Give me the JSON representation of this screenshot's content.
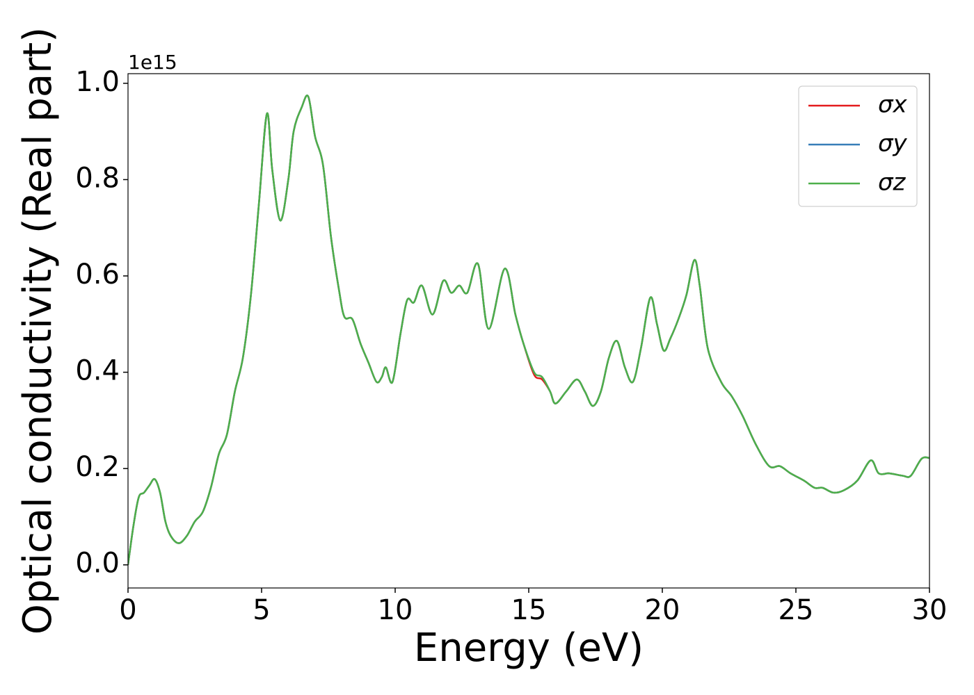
{
  "chart_data": {
    "type": "line",
    "xlabel": "Energy (eV)",
    "ylabel": "Optical conductivity (Real part)",
    "y_offset_label": "1e15",
    "xlim": [
      0,
      30
    ],
    "ylim": [
      -0.048,
      1.02
    ],
    "xticks": [
      0,
      5,
      10,
      15,
      20,
      25,
      30
    ],
    "yticks": [
      {
        "value": 0,
        "label": "0.0"
      },
      0.2,
      0.4,
      0.6,
      0.8,
      {
        "value": 1,
        "label": "1.0"
      }
    ],
    "legend": "upper right",
    "x": [
      0,
      0.2,
      0.4,
      0.6,
      0.8,
      1.0,
      1.2,
      1.4,
      1.6,
      1.9,
      2.2,
      2.5,
      2.8,
      3.1,
      3.4,
      3.7,
      4.0,
      4.3,
      4.6,
      4.9,
      5.2,
      5.4,
      5.7,
      6.0,
      6.2,
      6.5,
      6.75,
      7.0,
      7.3,
      7.6,
      7.9,
      8.1,
      8.4,
      8.7,
      9.0,
      9.3,
      9.5,
      9.65,
      9.9,
      10.2,
      10.45,
      10.7,
      11.0,
      11.4,
      11.8,
      12.1,
      12.4,
      12.7,
      13.1,
      13.5,
      14.1,
      14.5,
      14.8,
      15.2,
      15.5,
      15.8,
      16.0,
      16.4,
      16.8,
      17.1,
      17.4,
      17.7,
      18.0,
      18.3,
      18.6,
      18.9,
      19.2,
      19.55,
      19.8,
      20.05,
      20.3,
      20.6,
      20.9,
      21.2,
      21.4,
      21.7,
      22.2,
      22.6,
      23.0,
      23.5,
      24.0,
      24.4,
      24.8,
      25.3,
      25.7,
      26.0,
      26.4,
      26.8,
      27.3,
      27.8,
      28.1,
      28.5,
      29.0,
      29.3,
      29.7,
      30.0
    ],
    "series": [
      {
        "name": "σx",
        "color": "#e41a1c",
        "values": [
          0.0,
          0.08,
          0.14,
          0.15,
          0.165,
          0.178,
          0.15,
          0.09,
          0.06,
          0.045,
          0.06,
          0.09,
          0.11,
          0.16,
          0.23,
          0.27,
          0.36,
          0.43,
          0.56,
          0.75,
          0.937,
          0.82,
          0.715,
          0.8,
          0.9,
          0.95,
          0.972,
          0.89,
          0.83,
          0.68,
          0.57,
          0.515,
          0.51,
          0.46,
          0.42,
          0.38,
          0.39,
          0.41,
          0.38,
          0.48,
          0.55,
          0.545,
          0.58,
          0.52,
          0.59,
          0.565,
          0.58,
          0.565,
          0.625,
          0.49,
          0.615,
          0.52,
          0.46,
          0.395,
          0.385,
          0.36,
          0.335,
          0.36,
          0.385,
          0.36,
          0.33,
          0.36,
          0.43,
          0.465,
          0.41,
          0.38,
          0.45,
          0.555,
          0.5,
          0.445,
          0.47,
          0.51,
          0.56,
          0.633,
          0.58,
          0.45,
          0.38,
          0.35,
          0.31,
          0.25,
          0.205,
          0.205,
          0.19,
          0.175,
          0.16,
          0.16,
          0.15,
          0.155,
          0.175,
          0.217,
          0.19,
          0.19,
          0.185,
          0.185,
          0.22,
          0.222
        ]
      },
      {
        "name": "σy",
        "color": "#377eb8",
        "values": [
          0.0,
          0.08,
          0.14,
          0.15,
          0.165,
          0.178,
          0.15,
          0.09,
          0.06,
          0.045,
          0.06,
          0.09,
          0.11,
          0.16,
          0.23,
          0.27,
          0.36,
          0.43,
          0.56,
          0.75,
          0.937,
          0.82,
          0.715,
          0.8,
          0.9,
          0.95,
          0.972,
          0.89,
          0.83,
          0.68,
          0.57,
          0.515,
          0.51,
          0.46,
          0.42,
          0.38,
          0.39,
          0.41,
          0.38,
          0.48,
          0.55,
          0.545,
          0.58,
          0.52,
          0.59,
          0.565,
          0.58,
          0.565,
          0.625,
          0.49,
          0.615,
          0.52,
          0.46,
          0.4,
          0.39,
          0.36,
          0.335,
          0.36,
          0.385,
          0.36,
          0.33,
          0.36,
          0.43,
          0.465,
          0.41,
          0.38,
          0.45,
          0.555,
          0.5,
          0.445,
          0.47,
          0.51,
          0.56,
          0.633,
          0.58,
          0.45,
          0.38,
          0.35,
          0.31,
          0.25,
          0.205,
          0.205,
          0.19,
          0.175,
          0.16,
          0.16,
          0.15,
          0.155,
          0.175,
          0.217,
          0.19,
          0.19,
          0.185,
          0.185,
          0.22,
          0.222
        ]
      },
      {
        "name": "σz",
        "color": "#4daf4a",
        "values": [
          0.0,
          0.08,
          0.14,
          0.15,
          0.165,
          0.178,
          0.15,
          0.09,
          0.06,
          0.045,
          0.06,
          0.09,
          0.11,
          0.16,
          0.23,
          0.27,
          0.36,
          0.43,
          0.56,
          0.75,
          0.937,
          0.82,
          0.715,
          0.8,
          0.9,
          0.95,
          0.972,
          0.89,
          0.83,
          0.68,
          0.57,
          0.515,
          0.51,
          0.46,
          0.42,
          0.38,
          0.39,
          0.41,
          0.38,
          0.48,
          0.55,
          0.545,
          0.58,
          0.52,
          0.59,
          0.565,
          0.58,
          0.565,
          0.625,
          0.49,
          0.615,
          0.52,
          0.46,
          0.4,
          0.39,
          0.36,
          0.335,
          0.36,
          0.385,
          0.36,
          0.33,
          0.36,
          0.43,
          0.465,
          0.41,
          0.38,
          0.45,
          0.555,
          0.5,
          0.445,
          0.47,
          0.51,
          0.56,
          0.633,
          0.58,
          0.45,
          0.38,
          0.35,
          0.31,
          0.25,
          0.205,
          0.205,
          0.19,
          0.175,
          0.16,
          0.16,
          0.15,
          0.155,
          0.175,
          0.217,
          0.19,
          0.19,
          0.185,
          0.185,
          0.22,
          0.222
        ]
      }
    ]
  }
}
